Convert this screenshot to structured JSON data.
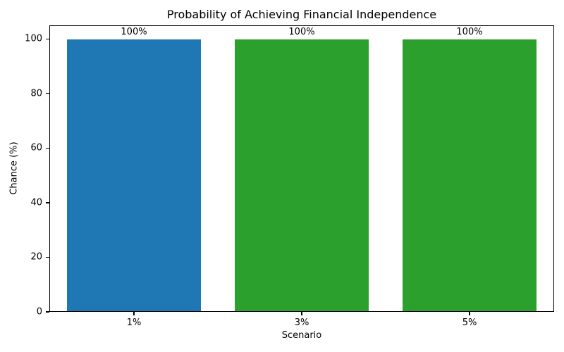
{
  "chart_data": {
    "type": "bar",
    "title": "Probability of Achieving Financial Independence",
    "xlabel": "Scenario",
    "ylabel": "Chance (%)",
    "categories": [
      "1%",
      "3%",
      "5%"
    ],
    "values": [
      100,
      100,
      100
    ],
    "bar_labels": [
      "100%",
      "100%",
      "100%"
    ],
    "bar_colors": [
      "#1f77b4",
      "#2ca02c",
      "#2ca02c"
    ],
    "ylim": [
      0,
      105
    ],
    "yticks": [
      0,
      20,
      40,
      60,
      80,
      100
    ],
    "bar_width_fraction": 0.8,
    "grid": false,
    "legend_position": "none",
    "background_color": "#ffffff",
    "spine_color": "#000000",
    "text_color": "#000000"
  }
}
